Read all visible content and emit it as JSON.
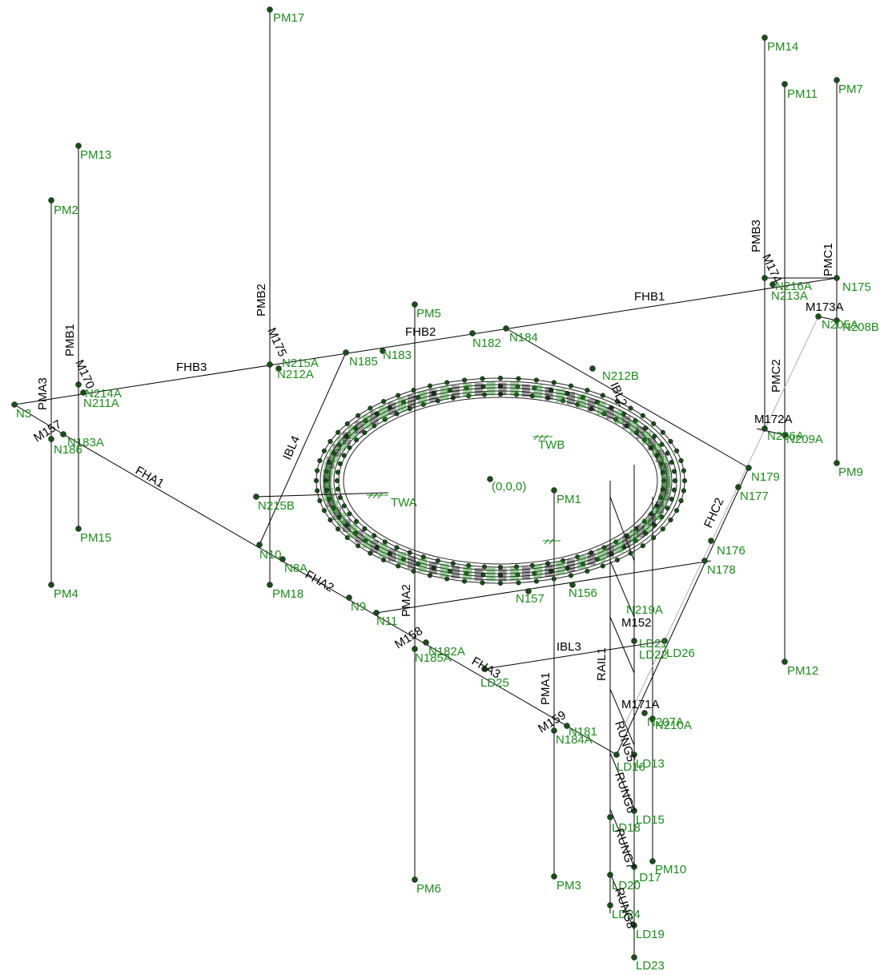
{
  "colors": {
    "node": "#1a4d1a",
    "node_label": "#1e8a1e",
    "member": "#000000",
    "member_secondary": "#b0b0b0",
    "background": "#ffffff"
  },
  "origin_label": "(0,0,0)",
  "member_labels": {
    "PMB2": "PMB2",
    "FHB3": "FHB3",
    "FHB2": "FHB2",
    "FHB1": "FHB1",
    "PMB1": "PMB1",
    "PMA3": "PMA3",
    "M157": "M157",
    "FHA1": "FHA1",
    "FHA2": "FHA2",
    "FHA3": "FHA3",
    "M158": "M158",
    "M159": "M159",
    "PMA2": "PMA2",
    "PMA1": "PMA1",
    "IBL3": "IBL3",
    "IBL4": "IBL4",
    "RAIL1": "RAIL1",
    "PMB3": "PMB3",
    "PMC1": "PMC1",
    "PMC2": "PMC2",
    "FHC2": "FHC2",
    "M173A": "M173A",
    "M172A": "M172A",
    "M171A": "M171A",
    "RUNG5": "RUNG5",
    "RUNG6": "RUNG6",
    "RUNG7": "RUNG7",
    "M170": "M170",
    "M174": "M174",
    "M175": "M175",
    "IBL2": "IBL2",
    "M152": "M152"
  },
  "node_labels": {
    "PM17": "PM17",
    "PM14": "PM14",
    "PM11": "PM11",
    "PM7": "PM7",
    "PM13": "PM13",
    "PM2": "PM2",
    "PM5": "PM5",
    "N175": "N175",
    "N213A": "N213A",
    "N216A": "N216A",
    "N208B": "N208B",
    "N205A": "N205A",
    "N182": "N182",
    "N184": "N184",
    "N183": "N183",
    "N185": "N185",
    "N212A": "N212A",
    "N215A": "N215A",
    "N214A": "N214A",
    "N211A": "N211A",
    "N3": "N3",
    "N183A": "N183A",
    "N186": "N186",
    "N212B": "N212B",
    "N209A": "N209A",
    "N206A": "N206A",
    "TWB": "TWB",
    "TWA": "TWA",
    "N215B": "N215B",
    "PM9": "PM9",
    "PM15": "PM15",
    "N179": "N179",
    "N177": "N177",
    "PM1": "PM1",
    "N176": "N176",
    "N178": "N178",
    "PM4": "PM4",
    "N10": "N10",
    "N8A": "N8A",
    "PM18": "PM18",
    "N9": "N9",
    "N11": "N11",
    "N157": "N157",
    "N156": "N156",
    "N182A": "N182A",
    "N185A": "N185A",
    "LD25": "LD25",
    "PM12": "PM12",
    "LD26": "LD26",
    "N181": "N181",
    "N184A": "N184A",
    "N207A": "N207A",
    "N210A": "N210A",
    "LD13": "LD13",
    "LD15": "LD15",
    "PM10": "PM10",
    "PM3": "PM3",
    "PM6": "PM6",
    "LD19": "LD19",
    "LD23": "LD23",
    "LD17": "LD17",
    "LD16": "LD16",
    "LD18": "LD18",
    "LD20": "LD20",
    "LD24": "LD24",
    "LD21": "LD21",
    "LD22": "LD22",
    "N219A": "N219A"
  }
}
